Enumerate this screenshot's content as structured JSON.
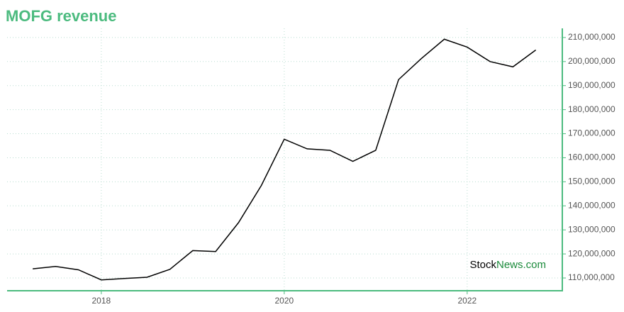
{
  "chart_data": {
    "type": "line",
    "title": "MOFG revenue",
    "x": [
      2017.25,
      2017.5,
      2017.75,
      2018.0,
      2018.25,
      2018.5,
      2018.75,
      2019.0,
      2019.25,
      2019.5,
      2019.75,
      2020.0,
      2020.25,
      2020.5,
      2020.75,
      2021.0,
      2021.25,
      2021.5,
      2021.75,
      2022.0,
      2022.25,
      2022.5,
      2022.75
    ],
    "series": [
      {
        "name": "MOFG revenue",
        "color": "#000000",
        "values": [
          113800000,
          114800000,
          113400000,
          109200000,
          109800000,
          110300000,
          113600000,
          121400000,
          121000000,
          133000000,
          148500000,
          167700000,
          163700000,
          163100000,
          158500000,
          163100000,
          192500000,
          201300000,
          209300000,
          206000000,
          200000000,
          197800000,
          204800000
        ]
      }
    ],
    "xlim": [
      2016.97,
      2023.04
    ],
    "xticks": [
      2018,
      2020,
      2022
    ],
    "ylim": [
      104700000,
      213800000
    ],
    "yticks": [
      {
        "value": 110000000,
        "label": "110,000,000"
      },
      {
        "value": 120000000,
        "label": "120,000,000"
      },
      {
        "value": 130000000,
        "label": "130,000,000"
      },
      {
        "value": 140000000,
        "label": "140,000,000"
      },
      {
        "value": 150000000,
        "label": "150,000,000"
      },
      {
        "value": 160000000,
        "label": "160,000,000"
      },
      {
        "value": 170000000,
        "label": "170,000,000"
      },
      {
        "value": 180000000,
        "label": "180,000,000"
      },
      {
        "value": 190000000,
        "label": "190,000,000"
      },
      {
        "value": 200000000,
        "label": "200,000,000"
      },
      {
        "value": 210000000,
        "label": "210,000,000"
      }
    ],
    "grid": true,
    "watermark": {
      "prefix": "Stock",
      "suffix": "News.com"
    }
  }
}
